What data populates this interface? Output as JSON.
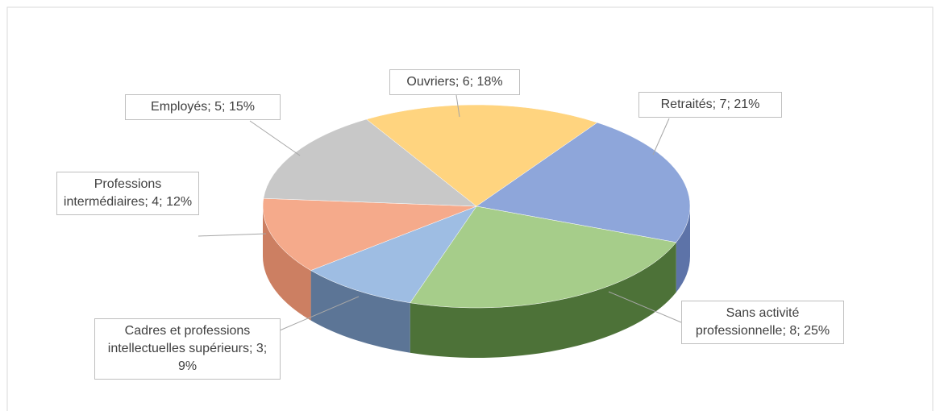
{
  "chart_data": {
    "type": "pie3d",
    "values": [
      6,
      7,
      8,
      3,
      4,
      5
    ],
    "value_labels": [
      "Ouvriers; 6; 18%",
      "Retraités; 7; 21%",
      "Sans activité professionnelle; 8; 25%",
      "Cadres et professions intellectuelles supérieurs; 3; 9%",
      "Professions intermédiaires; 4; 12%",
      "Employés; 5; 15%"
    ],
    "colors": [
      "#ffd47f",
      "#8ea6da",
      "#a6cd8a",
      "#9ebde3",
      "#f5aa8b",
      "#c8c8c8"
    ],
    "side_colors": [
      "#c9a14f",
      "#5d73a8",
      "#4d7238",
      "#5c7596",
      "#cc7f62",
      "#8f8f8f"
    ]
  }
}
